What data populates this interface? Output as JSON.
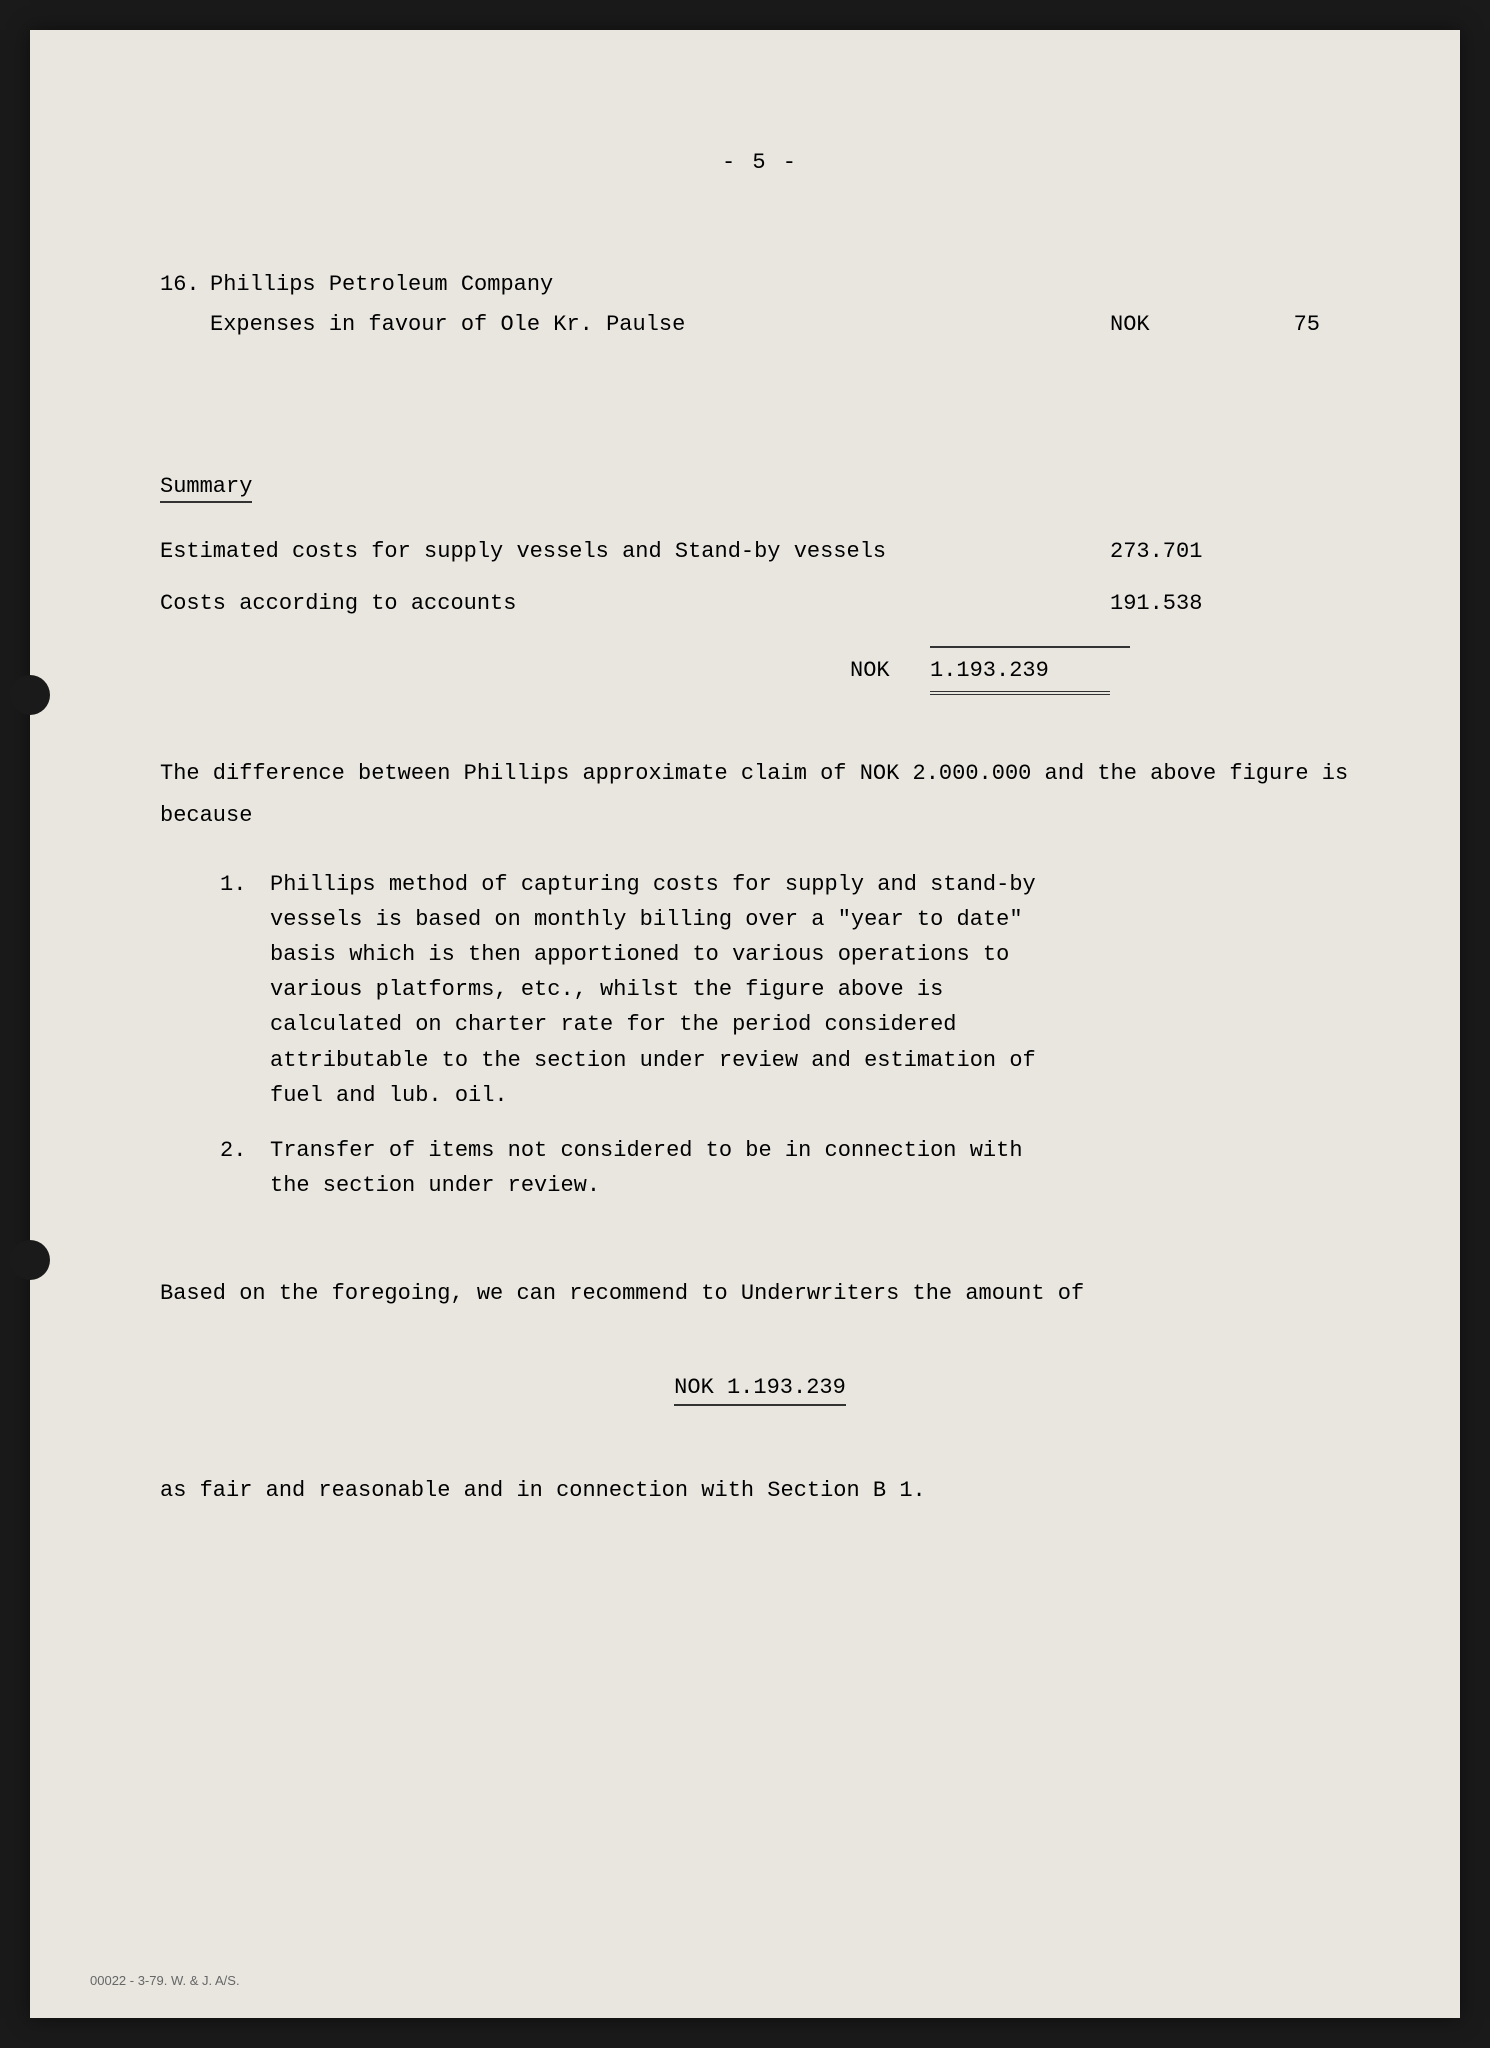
{
  "page_number": "- 5 -",
  "item16": {
    "number": "16.",
    "company": "Phillips Petroleum Company",
    "description": "Expenses in favour of Ole Kr. Paulse",
    "currency": "NOK",
    "amount": "75"
  },
  "summary": {
    "heading": "Summary",
    "row1_label": "Estimated costs for supply vessels and Stand-by vessels",
    "row1_amount": "273.701",
    "row2_label": "Costs according to accounts",
    "row2_amount": "191.538",
    "total_currency": "NOK",
    "total_amount": "1.193.239"
  },
  "explanation_text": "The difference between Phillips approximate claim of NOK 2.000.000 and the above figure is because",
  "reasons": {
    "r1_num": "1.",
    "r1_text": "Phillips method of capturing costs for supply and stand-by vessels is based on monthly billing over a \"year to date\" basis which is then apportioned to various operations to various platforms, etc., whilst the figure above is calculated on charter rate for the period considered attributable to the section under review and estimation of fuel and lub. oil.",
    "r2_num": "2.",
    "r2_text": "Transfer of items not considered to be in connection with the section under review."
  },
  "recommendation_text": "Based on the foregoing, we can recommend to Underwriters the amount of",
  "final_amount": "NOK  1.193.239",
  "closing_text": "as fair and reasonable and in connection with Section B 1.",
  "footer": "00022 - 3-79. W. & J. A/S."
}
